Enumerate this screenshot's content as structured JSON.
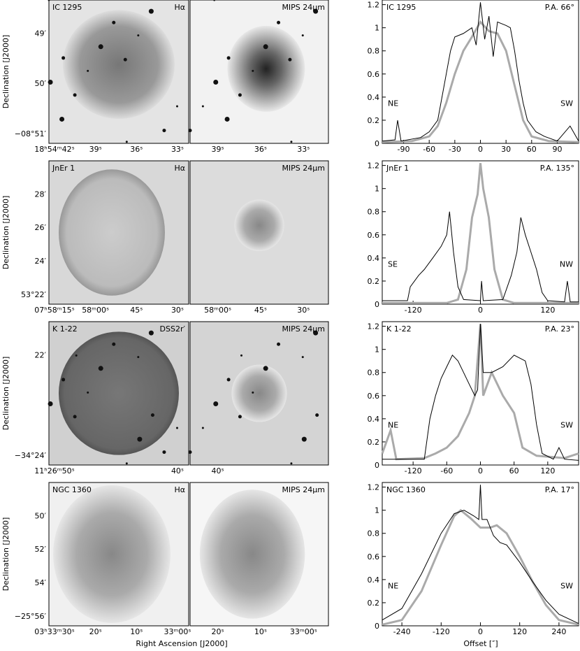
{
  "dec_label": "Declination [J2000]",
  "ra_label": "Right Ascension [J2000]",
  "offset_label": "Offset [″]",
  "rows": [
    {
      "object": "IC 1295",
      "filter": "Hα",
      "mips": "MIPS 24μm",
      "dec_ticks": [
        "49′",
        "50′",
        "−08°51′"
      ],
      "ra_ticks_left": [
        "18ʰ54ᵐ42ˢ",
        "39ˢ",
        "36ˢ",
        "33ˢ"
      ],
      "ra_ticks_right": [
        "39ˢ",
        "36ˢ",
        "33ˢ"
      ],
      "profile": {
        "type": "line",
        "label": "IC 1295",
        "pa": "P.A. 66°",
        "left": "NE",
        "right": "SW",
        "xlim": [
          -115,
          115
        ],
        "xticks": [
          -90,
          -60,
          -30,
          0,
          30,
          60,
          90
        ],
        "ylim": [
          0,
          1.24
        ],
        "yticks": [
          0,
          0.2,
          0.4,
          0.6,
          0.8,
          1,
          1.2
        ],
        "series": [
          {
            "color": "#000000",
            "x": [
              -115,
              -100,
              -97,
              -93,
              -70,
              -60,
              -50,
              -45,
              -40,
              -35,
              -30,
              -20,
              -10,
              -5,
              0,
              5,
              10,
              15,
              20,
              30,
              35,
              40,
              45,
              50,
              55,
              65,
              75,
              90,
              105,
              115
            ],
            "values": [
              0.02,
              0.03,
              0.2,
              0.02,
              0.05,
              0.1,
              0.2,
              0.4,
              0.6,
              0.8,
              0.92,
              0.95,
              1.0,
              0.85,
              1.22,
              0.9,
              1.1,
              0.75,
              1.05,
              1.02,
              1.0,
              0.8,
              0.55,
              0.35,
              0.2,
              0.1,
              0.06,
              0.02,
              0.15,
              0.02
            ]
          },
          {
            "color": "#aaaaaa",
            "x": [
              -115,
              -80,
              -60,
              -50,
              -40,
              -30,
              -20,
              -10,
              0,
              10,
              20,
              30,
              40,
              50,
              60,
              80,
              115
            ],
            "values": [
              0.01,
              0.02,
              0.06,
              0.15,
              0.35,
              0.6,
              0.8,
              0.92,
              1.05,
              0.97,
              0.95,
              0.8,
              0.5,
              0.2,
              0.06,
              0.02,
              0.01
            ]
          }
        ]
      }
    },
    {
      "object": "JnEr 1",
      "filter": "Hα",
      "mips": "MIPS 24μm",
      "dec_ticks": [
        "28′",
        "26′",
        "24′",
        "53°22′"
      ],
      "ra_ticks_left": [
        "07ʰ58ᵐ15ˢ",
        "58ᵐ00ˢ",
        "45ˢ",
        "30ˢ"
      ],
      "ra_ticks_right": [
        "58ᵐ00ˢ",
        "45ˢ",
        "30ˢ"
      ],
      "profile": {
        "type": "line",
        "label": "JnEr 1",
        "pa": "P.A. 135°",
        "left": "SE",
        "right": "NW",
        "xlim": [
          -175,
          175
        ],
        "xticks": [
          -120,
          0,
          120
        ],
        "ylim": [
          0,
          1.24
        ],
        "yticks": [
          0,
          0.2,
          0.4,
          0.6,
          0.8,
          1,
          1.2
        ],
        "series": [
          {
            "color": "#000000",
            "x": [
              -175,
              -130,
              -125,
              -110,
              -100,
              -85,
              -70,
              -60,
              -55,
              -48,
              -40,
              -30,
              0,
              2,
              5,
              40,
              55,
              65,
              72,
              80,
              90,
              100,
              110,
              120,
              150,
              155,
              160,
              175
            ],
            "values": [
              0.03,
              0.03,
              0.15,
              0.25,
              0.3,
              0.4,
              0.5,
              0.6,
              0.8,
              0.45,
              0.15,
              0.04,
              0.03,
              0.2,
              0.03,
              0.04,
              0.25,
              0.45,
              0.75,
              0.6,
              0.45,
              0.3,
              0.1,
              0.03,
              0.02,
              0.2,
              0.02,
              0.02
            ]
          },
          {
            "color": "#aaaaaa",
            "x": [
              -175,
              -60,
              -40,
              -25,
              -15,
              -5,
              0,
              5,
              15,
              25,
              40,
              60,
              175
            ],
            "values": [
              0.01,
              0.01,
              0.04,
              0.3,
              0.75,
              0.95,
              1.22,
              1.0,
              0.75,
              0.3,
              0.04,
              0.01,
              0.01
            ]
          }
        ]
      }
    },
    {
      "object": "K 1-22",
      "filter": "DSS2r′",
      "mips": "MIPS 24μm",
      "dec_ticks": [
        "22′",
        "−34°24′"
      ],
      "ra_ticks_left": [
        "11ʰ26ᵐ50ˢ",
        "40ˢ"
      ],
      "ra_ticks_right": [
        "40ˢ"
      ],
      "profile": {
        "type": "line",
        "label": "K 1-22",
        "pa": "P.A. 23°",
        "left": "NE",
        "right": "SW",
        "xlim": [
          -175,
          175
        ],
        "xticks": [
          -120,
          -60,
          0,
          60,
          120
        ],
        "ylim": [
          0,
          1.24
        ],
        "yticks": [
          0,
          0.2,
          0.4,
          0.6,
          0.8,
          1,
          1.2
        ],
        "series": [
          {
            "color": "#000000",
            "x": [
              -175,
              -100,
              -90,
              -80,
              -70,
              -60,
              -50,
              -40,
              -30,
              -20,
              -10,
              -5,
              0,
              5,
              20,
              40,
              60,
              80,
              90,
              100,
              110,
              130,
              140,
              150,
              175
            ],
            "values": [
              0.05,
              0.05,
              0.4,
              0.6,
              0.75,
              0.85,
              0.95,
              0.9,
              0.8,
              0.7,
              0.6,
              0.65,
              1.22,
              0.8,
              0.8,
              0.85,
              0.95,
              0.9,
              0.7,
              0.35,
              0.1,
              0.05,
              0.15,
              0.05,
              0.04
            ]
          },
          {
            "color": "#aaaaaa",
            "x": [
              -175,
              -160,
              -150,
              -100,
              -80,
              -60,
              -40,
              -20,
              -10,
              0,
              5,
              20,
              40,
              60,
              75,
              100,
              150,
              175
            ],
            "values": [
              0.1,
              0.3,
              0.05,
              0.06,
              0.1,
              0.15,
              0.25,
              0.45,
              0.6,
              1.22,
              0.6,
              0.8,
              0.6,
              0.45,
              0.15,
              0.08,
              0.06,
              0.1
            ]
          }
        ]
      }
    },
    {
      "object": "NGC 1360",
      "filter": "Hα",
      "mips": "MIPS 24μm",
      "dec_ticks": [
        "50′",
        "52′",
        "54′",
        "−25°56′"
      ],
      "ra_ticks_left": [
        "03ʰ33ᵐ30ˢ",
        "20ˢ",
        "10ˢ",
        "33ᵐ00ˢ"
      ],
      "ra_ticks_right": [
        "20ˢ",
        "10ˢ",
        "33ᵐ00ˢ"
      ],
      "profile": {
        "type": "line",
        "label": "NGC 1360",
        "pa": "P.A. 17°",
        "left": "NE",
        "right": "SW",
        "xlim": [
          -300,
          300
        ],
        "xticks": [
          -240,
          -120,
          0,
          120,
          240
        ],
        "ylim": [
          0,
          1.24
        ],
        "yticks": [
          0,
          0.2,
          0.4,
          0.6,
          0.8,
          1,
          1.2
        ],
        "series": [
          {
            "color": "#000000",
            "x": [
              -300,
              -240,
              -180,
              -120,
              -80,
              -50,
              -20,
              -5,
              0,
              5,
              20,
              40,
              60,
              80,
              120,
              160,
              200,
              240,
              300
            ],
            "values": [
              0.05,
              0.15,
              0.45,
              0.8,
              0.97,
              1.0,
              0.95,
              0.92,
              1.22,
              0.92,
              0.92,
              0.78,
              0.72,
              0.7,
              0.55,
              0.38,
              0.22,
              0.1,
              0.02
            ]
          },
          {
            "color": "#aaaaaa",
            "x": [
              -300,
              -240,
              -180,
              -120,
              -80,
              -60,
              -30,
              0,
              30,
              50,
              80,
              120,
              160,
              200,
              240,
              300
            ],
            "values": [
              0.01,
              0.05,
              0.3,
              0.7,
              0.95,
              1.0,
              0.93,
              0.85,
              0.85,
              0.87,
              0.8,
              0.6,
              0.38,
              0.18,
              0.05,
              0.01
            ]
          }
        ]
      }
    }
  ]
}
